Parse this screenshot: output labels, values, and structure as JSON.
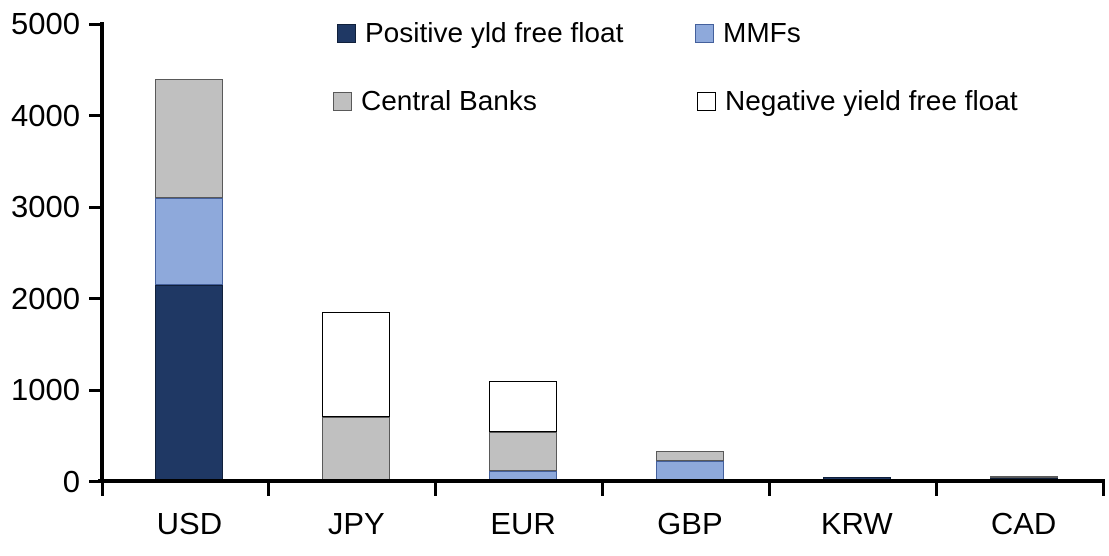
{
  "chart_data": {
    "type": "bar",
    "stacked": true,
    "title": "",
    "xlabel": "",
    "ylabel": "",
    "categories": [
      "USD",
      "JPY",
      "EUR",
      "GBP",
      "KRW",
      "CAD"
    ],
    "series": [
      {
        "name": "Positive yld free float",
        "color": "#1F3864",
        "border": "#10203B",
        "values": [
          2150,
          0,
          0,
          0,
          45,
          40
        ]
      },
      {
        "name": "MMFs",
        "color": "#8EA9DB",
        "border": "#44609C",
        "values": [
          950,
          0,
          110,
          220,
          0,
          0
        ]
      },
      {
        "name": "Central Banks",
        "color": "#C0C0C0",
        "border": "#595959",
        "values": [
          1300,
          700,
          430,
          110,
          0,
          25
        ]
      },
      {
        "name": "Negative yield free float",
        "color": "#FFFFFF",
        "border": "#000000",
        "values": [
          0,
          1150,
          560,
          0,
          0,
          0
        ]
      }
    ],
    "totals": [
      4400,
      1850,
      1100,
      330,
      45,
      65
    ],
    "ylim": [
      0,
      5000
    ],
    "y_ticks": [
      0,
      1000,
      2000,
      3000,
      4000,
      5000
    ],
    "legend_position": "top",
    "grid": false,
    "axis_color": "#000000",
    "background_color": "#FFFFFF"
  }
}
